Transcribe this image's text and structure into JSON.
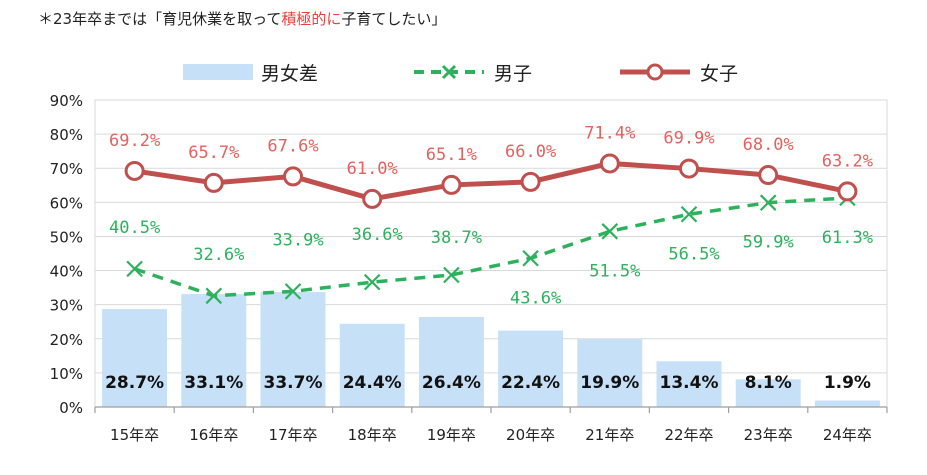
{
  "note": {
    "prefix": "＊23年卒までは「育児休業を取って",
    "highlight": "積極的に",
    "suffix": "子育てしたい」"
  },
  "legend": {
    "gap": "男女差",
    "male": "男子",
    "female": "女子"
  },
  "colors": {
    "gap_bar": "#c5e0f7",
    "male": "#2db15c",
    "female": "#c0504d",
    "female_label": "#e0635f",
    "male_label": "#2db15c",
    "highlight": "#e8413c"
  },
  "chart_data": {
    "type": "bar+line",
    "categories": [
      "15年卒",
      "16年卒",
      "17年卒",
      "18年卒",
      "19年卒",
      "20年卒",
      "21年卒",
      "22年卒",
      "23年卒",
      "24年卒"
    ],
    "y_ticks": [
      "0%",
      "10%",
      "20%",
      "30%",
      "40%",
      "50%",
      "60%",
      "70%",
      "80%",
      "90%"
    ],
    "ylim": [
      0,
      90
    ],
    "grid": true,
    "legend_position": "top",
    "series": [
      {
        "name": "男女差",
        "type": "bar",
        "values": [
          28.7,
          33.1,
          33.7,
          24.4,
          26.4,
          22.4,
          19.9,
          13.4,
          8.1,
          1.9
        ],
        "labels": [
          "28.7%",
          "33.1%",
          "33.7%",
          "24.4%",
          "26.4%",
          "22.4%",
          "19.9%",
          "13.4%",
          "8.1%",
          "1.9%"
        ]
      },
      {
        "name": "男子",
        "type": "line",
        "style": "dashed",
        "marker": "x",
        "values": [
          40.5,
          32.6,
          33.9,
          36.6,
          38.7,
          43.6,
          51.5,
          56.5,
          59.9,
          61.3
        ],
        "labels": [
          "40.5%",
          "32.6%",
          "33.9%",
          "36.6%",
          "38.7%",
          "43.6%",
          "51.5%",
          "56.5%",
          "59.9%",
          "61.3%"
        ]
      },
      {
        "name": "女子",
        "type": "line",
        "style": "solid",
        "marker": "circle",
        "values": [
          69.2,
          65.7,
          67.6,
          61.0,
          65.1,
          66.0,
          71.4,
          69.9,
          68.0,
          63.2
        ],
        "labels": [
          "69.2%",
          "65.7%",
          "67.6%",
          "61.0%",
          "65.1%",
          "66.0%",
          "71.4%",
          "69.9%",
          "68.0%",
          "63.2%"
        ]
      }
    ]
  }
}
